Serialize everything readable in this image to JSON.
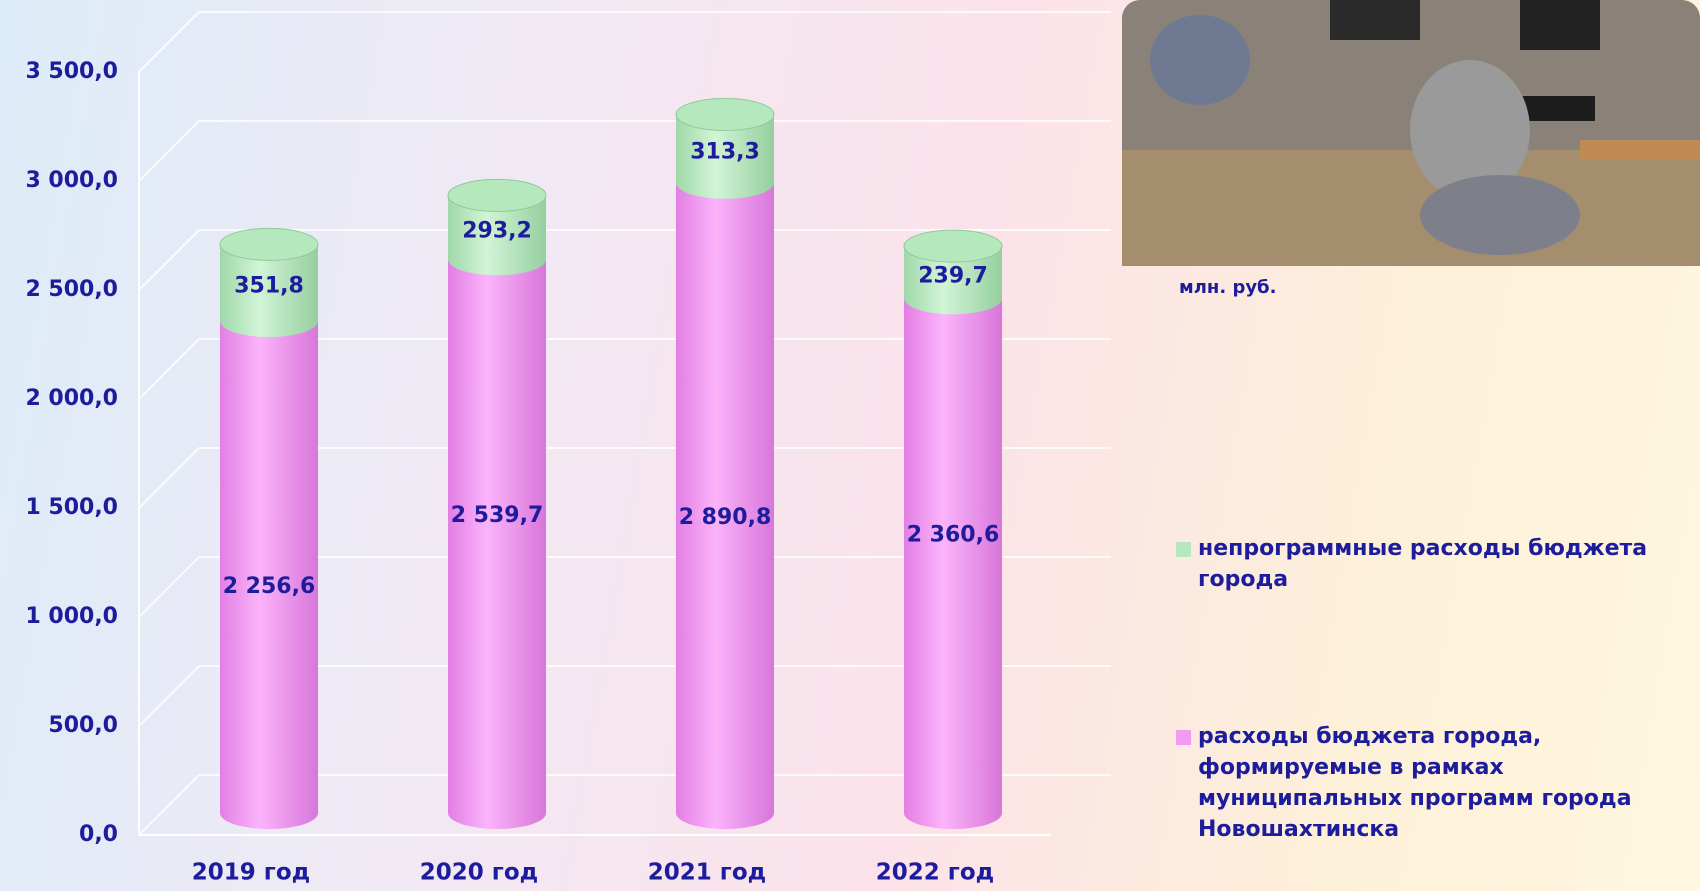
{
  "chart_data": {
    "type": "stacked-cylinder",
    "unit": "млн. руб.",
    "categories": [
      "2019 год",
      "2020 год",
      "2021 год",
      "2022 год"
    ],
    "series": [
      {
        "name": "расходы бюджета города, формируемые в рамках муниципальных программ города Новошахтинска",
        "color": "#f39af3",
        "values": [
          2256.6,
          2539.7,
          2890.8,
          2360.6
        ],
        "value_labels": [
          "2 256,6",
          "2 539,7",
          "2 890,8",
          "2 360,6"
        ]
      },
      {
        "name": "непрограммные расходы бюджета города",
        "color": "#b6e8bd",
        "values": [
          351.8,
          293.2,
          313.3,
          239.7
        ],
        "value_labels": [
          "351,8",
          "293,2",
          "313,3",
          "239,7"
        ]
      }
    ],
    "ylim": [
      0,
      3500
    ],
    "yticks": [
      {
        "value": 0,
        "label": "0,0"
      },
      {
        "value": 500,
        "label": "500,0"
      },
      {
        "value": 1000,
        "label": "1 000,0"
      },
      {
        "value": 1500,
        "label": "1 500,0"
      },
      {
        "value": 2000,
        "label": "2 000,0"
      },
      {
        "value": 2500,
        "label": "2 500,0"
      },
      {
        "value": 3000,
        "label": "3 000,0"
      },
      {
        "value": 3500,
        "label": "3 500,0"
      }
    ],
    "grid": true
  }
}
